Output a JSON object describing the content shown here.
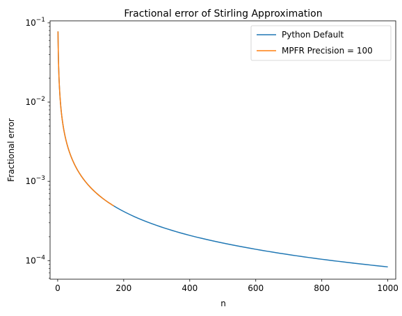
{
  "chart_data": {
    "type": "line",
    "title": "Fractional error of Stirling Approximation",
    "xlabel": "n",
    "ylabel": "Fractional error",
    "xlim": [
      -23,
      1024
    ],
    "ylim": [
      5.83e-05,
      0.106
    ],
    "yscale": "log",
    "grid": false,
    "legend_position": "top-right",
    "x_ticks": [
      0,
      200,
      400,
      600,
      800,
      1000
    ],
    "x_tick_labels": [
      "0",
      "200",
      "400",
      "600",
      "800",
      "1000"
    ],
    "y_ticks": [
      0.0001,
      0.001,
      0.01,
      0.1
    ],
    "y_tick_labels": [
      "10^-4",
      "10^-3",
      "10^-2",
      "10^-1"
    ],
    "series": [
      {
        "name": "Python Default",
        "color": "#1f77b4",
        "x": [
          1,
          2,
          3,
          5,
          10,
          20,
          50,
          100,
          150,
          170,
          200,
          300,
          400,
          500,
          600,
          700,
          800,
          900,
          1000
        ],
        "y": [
          0.0779,
          0.0405,
          0.0274,
          0.0165,
          0.0083,
          0.00416,
          0.00167,
          0.000833,
          0.000555,
          0.00049,
          0.000417,
          0.000278,
          0.000208,
          0.000167,
          0.000139,
          0.000119,
          0.000104,
          9.26e-05,
          8.33e-05
        ]
      },
      {
        "name": "MPFR Precision = 100",
        "color": "#ff7f0e",
        "x": [
          1,
          2,
          3,
          5,
          10,
          20,
          50,
          100,
          150,
          170
        ],
        "y": [
          0.0779,
          0.0405,
          0.0274,
          0.0165,
          0.0083,
          0.00416,
          0.00167,
          0.000833,
          0.000555,
          0.00049
        ]
      }
    ]
  }
}
